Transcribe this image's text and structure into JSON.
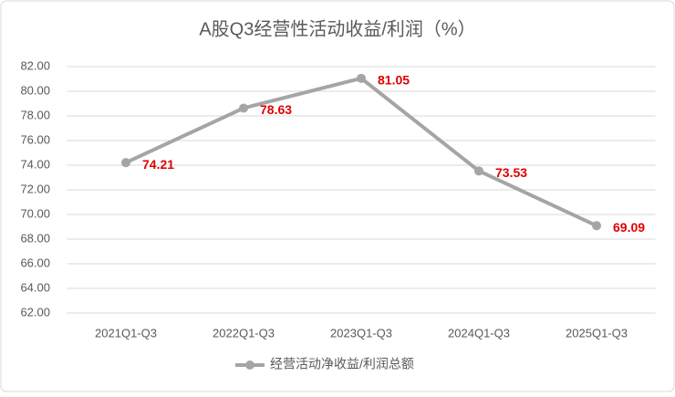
{
  "chart_data": {
    "type": "line",
    "title": "A股Q3经营性活动收益/利润（%）",
    "categories": [
      "2021Q1-Q3",
      "2022Q1-Q3",
      "2023Q1-Q3",
      "2024Q1-Q3",
      "2025Q1-Q3"
    ],
    "series": [
      {
        "name": "经营活动净收益/利润总额",
        "color": "#a5a5a5",
        "values": [
          74.21,
          78.63,
          81.05,
          73.53,
          69.09
        ]
      }
    ],
    "value_label_color": "#e00000",
    "ylim": [
      62,
      82
    ],
    "yticks": [
      {
        "value": 62,
        "label": "62.00"
      },
      {
        "value": 64,
        "label": "64.00"
      },
      {
        "value": 66,
        "label": "66.00"
      },
      {
        "value": 68,
        "label": "68.00"
      },
      {
        "value": 70,
        "label": "70.00"
      },
      {
        "value": 72,
        "label": "72.00"
      },
      {
        "value": 74,
        "label": "74.00"
      },
      {
        "value": 76,
        "label": "76.00"
      },
      {
        "value": 78,
        "label": "78.00"
      },
      {
        "value": 80,
        "label": "80.00"
      },
      {
        "value": 82,
        "label": "82.00"
      }
    ],
    "grid": true,
    "legend": "bottom"
  }
}
